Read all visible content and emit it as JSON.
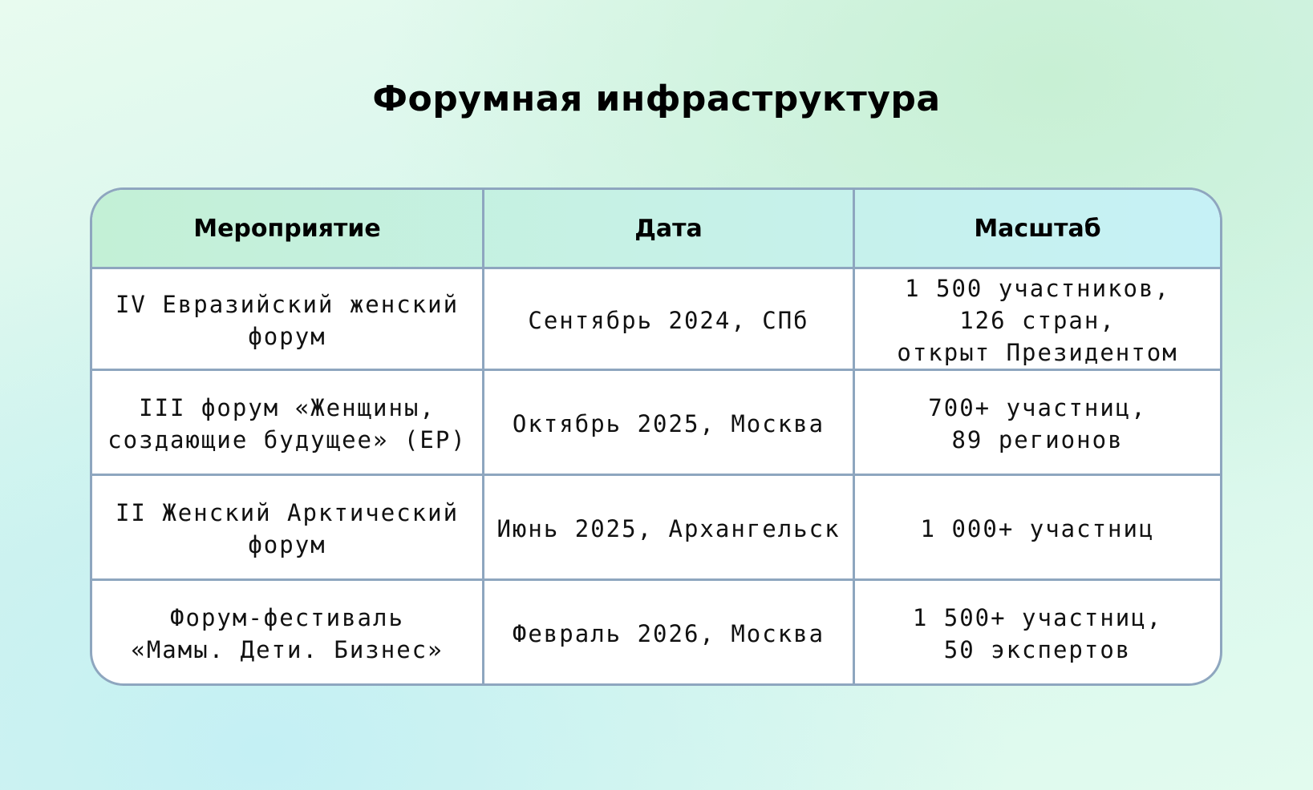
{
  "title": "Форумная инфраструктура",
  "table": {
    "headers": [
      "Мероприятие",
      "Дата",
      "Масштаб"
    ],
    "rows": [
      [
        "IV Евразийский женский\nфорум",
        "Сентябрь 2024, СПб",
        "1 500 участников,\n126 стран,\nоткрыт Президентом"
      ],
      [
        "III форум «Женщины,\nсоздающие будущее» (ЕР)",
        "Октябрь 2025, Москва",
        "700+ участниц,\n89 регионов"
      ],
      [
        "II Женский Арктический\nфорум",
        "Июнь 2025, Архангельск",
        "1 000+ участниц"
      ],
      [
        "Форум-фестиваль\n«Мамы. Дети. Бизнес»",
        "Февраль 2026, Москва",
        "1 500+ участниц,\n50 экспертов"
      ]
    ]
  }
}
